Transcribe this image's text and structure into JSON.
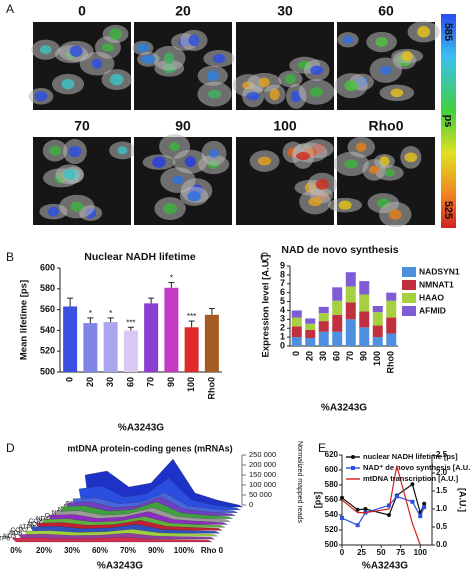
{
  "chart_data": [
    {
      "type": "image_grid",
      "panel": "A",
      "labels": [
        "0",
        "20",
        "30",
        "60",
        "70",
        "90",
        "100",
        "Rho0"
      ],
      "colorbar_ticks": [
        525,
        585
      ],
      "colorbar_label": "ps"
    },
    {
      "type": "bar",
      "panel": "B",
      "title": "Nuclear NADH lifetime",
      "ylabel": "Mean lifetime [ps]",
      "xlabel": "%A3243G",
      "categories": [
        "0",
        "20",
        "30",
        "60",
        "70",
        "90",
        "100",
        "Rho0"
      ],
      "values": [
        563,
        547,
        548,
        540,
        566,
        581,
        543,
        555
      ],
      "errors": [
        8,
        5,
        4,
        3,
        5,
        5,
        6,
        6
      ],
      "colors": [
        "#3b4fe0",
        "#7f86e8",
        "#aaa6ee",
        "#d9c9f2",
        "#8a3fd2",
        "#c43cc4",
        "#e02a2a",
        "#a65a24"
      ],
      "annotations": [
        null,
        "*",
        "*",
        "***",
        null,
        "*",
        "***",
        null
      ],
      "ylim": [
        500,
        600
      ],
      "yticks": [
        500,
        520,
        540,
        560,
        580,
        600
      ]
    },
    {
      "type": "stacked_bar",
      "panel": "C",
      "title": "NAD de novo synthesis",
      "ylabel": "Expression level [A.U.]",
      "xlabel": "%A3243G",
      "categories": [
        "0",
        "20",
        "30",
        "60",
        "70",
        "90",
        "100",
        "Rho0"
      ],
      "series": [
        {
          "name": "NADSYN1",
          "color": "#4f8fe0",
          "values": [
            1.0,
            0.9,
            1.6,
            1.6,
            3.0,
            2.1,
            1.0,
            1.4
          ]
        },
        {
          "name": "NMNAT1",
          "color": "#c0303f",
          "values": [
            1.2,
            0.9,
            1.2,
            1.9,
            1.9,
            1.8,
            1.3,
            1.8
          ]
        },
        {
          "name": "HAAO",
          "color": "#a6d040",
          "values": [
            1.0,
            0.7,
            0.9,
            1.6,
            1.8,
            1.9,
            1.5,
            1.9
          ]
        },
        {
          "name": "AFMID",
          "color": "#7d5cd6",
          "values": [
            0.8,
            0.6,
            0.7,
            1.5,
            1.6,
            1.5,
            0.7,
            0.9
          ]
        }
      ],
      "ylim": [
        0,
        9
      ],
      "yticks": [
        0,
        1,
        2,
        3,
        4,
        5,
        6,
        7,
        8,
        9
      ]
    },
    {
      "type": "ribbon_3d",
      "panel": "D",
      "title": "mtDNA protein-coding genes (mRNAs)",
      "zlabel": "Normalized mapped reads",
      "xlabel": "%A3243G",
      "categories": [
        "0%",
        "20%",
        "30%",
        "60%",
        "70%",
        "90%",
        "100%",
        "Rho 0"
      ],
      "series": [
        {
          "name": "COX1",
          "color": "#1e32c8",
          "values": [
            150000,
            170000,
            90000,
            110000,
            230000,
            60000,
            25000,
            0
          ]
        },
        {
          "name": "ND4",
          "color": "#2a4ee0",
          "values": [
            95000,
            110000,
            55000,
            70000,
            150000,
            40000,
            15000,
            0
          ]
        },
        {
          "name": "ND5",
          "color": "#4a66d8",
          "values": [
            60000,
            65000,
            35000,
            45000,
            90000,
            25000,
            10000,
            0
          ]
        },
        {
          "name": "ND1",
          "color": "#7040c0",
          "values": [
            55000,
            60000,
            30000,
            40000,
            85000,
            22000,
            9000,
            0
          ]
        },
        {
          "name": "CytB",
          "color": "#40a040",
          "values": [
            50000,
            55000,
            28000,
            36000,
            75000,
            20000,
            8000,
            0
          ]
        },
        {
          "name": "ND4L",
          "color": "#9a9a9a",
          "values": [
            40000,
            45000,
            22000,
            30000,
            60000,
            16000,
            6000,
            0
          ]
        },
        {
          "name": "COX3",
          "color": "#8c2ec0",
          "values": [
            36000,
            40000,
            20000,
            27000,
            55000,
            15000,
            6000,
            0
          ]
        },
        {
          "name": "ND2",
          "color": "#60b040",
          "values": [
            30000,
            33000,
            17000,
            22000,
            45000,
            12000,
            5000,
            0
          ]
        },
        {
          "name": "ATP8",
          "color": "#c02030",
          "values": [
            26000,
            29000,
            15000,
            19000,
            40000,
            10000,
            4000,
            0
          ]
        },
        {
          "name": "COX2",
          "color": "#3050c0",
          "values": [
            23000,
            25000,
            13000,
            17000,
            35000,
            9000,
            4000,
            0
          ]
        },
        {
          "name": "ND6",
          "color": "#a0d040",
          "values": [
            16000,
            18000,
            9000,
            12000,
            25000,
            7000,
            3000,
            0
          ]
        },
        {
          "name": "ND3",
          "color": "#9040a0",
          "values": [
            13000,
            15000,
            8000,
            10000,
            20000,
            5000,
            2000,
            0
          ]
        },
        {
          "name": "ATP6",
          "color": "#d03050",
          "values": [
            10000,
            11000,
            6000,
            8000,
            15000,
            4000,
            2000,
            0
          ]
        }
      ],
      "zlim": [
        0,
        250000
      ],
      "zticks": [
        0,
        {
          "value": 50000,
          "label": "50 000"
        },
        {
          "value": 100000,
          "label": "100 000"
        },
        {
          "value": 150000,
          "label": "150 000"
        },
        {
          "value": 200000,
          "label": "200 000"
        },
        {
          "value": 250000,
          "label": "250 000"
        }
      ]
    },
    {
      "type": "line",
      "panel": "E",
      "ylabel": "[ps]",
      "y2label": "[A.U.]",
      "xlabel": "%A3243G",
      "x": [
        0,
        20,
        30,
        60,
        70,
        90,
        100,
        105
      ],
      "series": [
        {
          "name": "nuclear NADH lifetime [ps]",
          "color": "#111111",
          "marker": "circle",
          "values": [
            563,
            547,
            548,
            540,
            566,
            581,
            543,
            555
          ]
        },
        {
          "name": "NAD⁺ de novo synthesis [A.U.]",
          "color": "#3050e0",
          "marker": "square",
          "axis": "y2",
          "values": [
            0.75,
            0.55,
            0.9,
            1.1,
            1.35,
            1.2,
            0.8,
            1.05
          ]
        },
        {
          "name": "mtDNA transcription [A.U.]",
          "color": "#d02020",
          "axis": "y2",
          "values": [
            1.25,
            0.9,
            0.9,
            1.0,
            2.2,
            0.6,
            0.0,
            null
          ]
        }
      ],
      "xlim": [
        0,
        115
      ],
      "xticks": [
        0,
        25,
        50,
        75,
        100
      ],
      "ylim": [
        500,
        620
      ],
      "yticks": [
        500,
        520,
        540,
        560,
        580,
        600,
        620
      ],
      "y2lim": [
        0,
        2.5
      ],
      "y2ticks": [
        {
          "value": 0,
          "label": "0.0"
        },
        0.5,
        {
          "value": 1,
          "label": "1.0"
        },
        1.5,
        {
          "value": 2,
          "label": "2.0"
        },
        2.5
      ]
    }
  ]
}
